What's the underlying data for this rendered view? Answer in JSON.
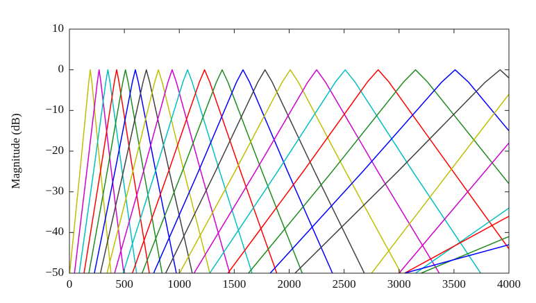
{
  "chart_data": {
    "type": "line",
    "ylabel": "Magnitude (dB)",
    "xlim": [
      0,
      4000
    ],
    "ylim": [
      -50,
      10
    ],
    "xticks": [
      0,
      500,
      1000,
      1500,
      2000,
      2500,
      3000,
      3500,
      4000
    ],
    "yticks": [
      10,
      0,
      {
        "value": -10,
        "label": "−10"
      },
      {
        "value": -20,
        "label": "−20"
      },
      {
        "value": -30,
        "label": "−30"
      },
      {
        "value": -40,
        "label": "−40"
      },
      {
        "value": -50,
        "label": "−50"
      }
    ],
    "series": [
      {
        "color": "#bfbf00",
        "x": [
          2,
          96,
          176,
          190,
          204,
          284,
          378
        ],
        "values": [
          -50,
          -25,
          -3,
          0,
          -3,
          -25,
          -50
        ]
      },
      {
        "color": "#d000d0",
        "x": [
          46,
          158,
          254,
          270,
          286,
          382,
          494
        ],
        "values": [
          -50,
          -25,
          -3,
          0,
          -3,
          -25,
          -50
        ]
      },
      {
        "color": "#00c0c0",
        "x": [
          89,
          220,
          331,
          350,
          369,
          480,
          611
        ],
        "values": [
          -50,
          -25,
          -3,
          0,
          -3,
          -25,
          -50
        ]
      },
      {
        "color": "#ff0000",
        "x": [
          133,
          282,
          409,
          430,
          451,
          578,
          727
        ],
        "values": [
          -50,
          -25,
          -3,
          0,
          -3,
          -25,
          -50
        ]
      },
      {
        "color": "#1e8c1e",
        "x": [
          177,
          344,
          486,
          510,
          534,
          676,
          843
        ],
        "values": [
          -50,
          -25,
          -3,
          0,
          -3,
          -25,
          -50
        ]
      },
      {
        "color": "#0000ff",
        "x": [
          227,
          414,
          573,
          600,
          627,
          786,
          973
        ],
        "values": [
          -50,
          -25,
          -3,
          0,
          -3,
          -25,
          -50
        ]
      },
      {
        "color": "#404040",
        "x": [
          282,
          491,
          670,
          700,
          730,
          909,
          1118
        ],
        "values": [
          -50,
          -25,
          -3,
          0,
          -3,
          -25,
          -50
        ]
      },
      {
        "color": "#bfbf00",
        "x": [
          342,
          577,
          776,
          810,
          844,
          1043,
          1278
        ],
        "values": [
          -50,
          -25,
          -3,
          0,
          -3,
          -25,
          -50
        ]
      },
      {
        "color": "#d000d0",
        "x": [
          411,
          674,
          897,
          935,
          973,
          1196,
          1459
        ],
        "values": [
          -50,
          -25,
          -3,
          0,
          -3,
          -25,
          -50
        ]
      },
      {
        "color": "#00c0c0",
        "x": [
          488,
          782,
          1033,
          1075,
          1117,
          1368,
          1662
        ],
        "values": [
          -50,
          -25,
          -3,
          0,
          -3,
          -25,
          -50
        ]
      },
      {
        "color": "#ff0000",
        "x": [
          573,
          902,
          1183,
          1230,
          1277,
          1558,
          1887
        ],
        "values": [
          -50,
          -25,
          -3,
          0,
          -3,
          -25,
          -50
        ]
      },
      {
        "color": "#1e8c1e",
        "x": [
          661,
          1027,
          1338,
          1390,
          1442,
          1753,
          2119
        ],
        "values": [
          -50,
          -25,
          -3,
          0,
          -3,
          -25,
          -50
        ]
      },
      {
        "color": "#0000ff",
        "x": [
          766,
          1174,
          1521,
          1580,
          1639,
          1986,
          2394
        ],
        "values": [
          -50,
          -25,
          -3,
          0,
          -3,
          -25,
          -50
        ]
      },
      {
        "color": "#404040",
        "x": [
          876,
          1329,
          1715,
          1780,
          1845,
          2231,
          2684
        ],
        "values": [
          -50,
          -25,
          -3,
          0,
          -3,
          -25,
          -50
        ]
      },
      {
        "color": "#bfbf00",
        "x": [
          1002,
          1507,
          1937,
          2010,
          2083,
          2513,
          3018
        ],
        "values": [
          -50,
          -25,
          -3,
          0,
          -3,
          -25,
          -50
        ]
      },
      {
        "color": "#d000d0",
        "x": [
          1134,
          1693,
          2170,
          2250,
          2330,
          2807,
          3366
        ],
        "values": [
          -50,
          -25,
          -3,
          0,
          -3,
          -25,
          -50
        ]
      },
      {
        "color": "#00c0c0",
        "x": [
          1277,
          1895,
          2421,
          2510,
          2599,
          3125,
          3743
        ],
        "values": [
          -50,
          -25,
          -3,
          0,
          -3,
          -25,
          -50
        ]
      },
      {
        "color": "#ff0000",
        "x": [
          1442,
          2128,
          2712,
          2810,
          2908,
          3492,
          4000
        ],
        "values": [
          -50,
          -25,
          -3,
          0,
          -3,
          -25,
          -44
        ]
      },
      {
        "color": "#1e8c1e",
        "x": [
          1629,
          2391,
          3041,
          3150,
          3259,
          4000
        ],
        "values": [
          -50,
          -25,
          -3,
          0,
          -3,
          -28
        ]
      },
      {
        "color": "#0000ff",
        "x": [
          1827,
          2670,
          3389,
          3510,
          3631,
          4000
        ],
        "values": [
          -50,
          -25,
          -3,
          0,
          -3,
          -15
        ]
      },
      {
        "color": "#404040",
        "x": [
          2053,
          2989,
          3786,
          3920,
          4000
        ],
        "values": [
          -50,
          -25,
          -3,
          0,
          -2
        ]
      },
      {
        "color": "#bfbf00",
        "x": [
          2750,
          4000
        ],
        "values": [
          -50,
          -6
        ]
      },
      {
        "color": "#d000d0",
        "x": [
          3000,
          4000
        ],
        "values": [
          -50,
          -18
        ]
      },
      {
        "color": "#00c0c0",
        "x": [
          3150,
          4000
        ],
        "values": [
          -50,
          -34
        ]
      },
      {
        "color": "#ff0000",
        "x": [
          3050,
          4000
        ],
        "values": [
          -50,
          -36
        ]
      },
      {
        "color": "#1e8c1e",
        "x": [
          3200,
          4000
        ],
        "values": [
          -50,
          -41
        ]
      },
      {
        "color": "#0000ff",
        "x": [
          3050,
          4000
        ],
        "values": [
          -50,
          -43
        ]
      }
    ]
  }
}
